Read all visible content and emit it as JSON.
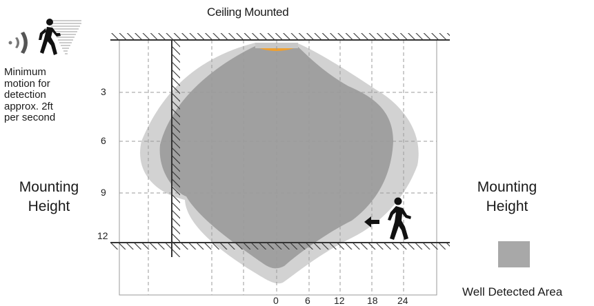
{
  "title": "Ceiling Mounted",
  "motion_note": [
    "Minimum",
    "motion for",
    "detection",
    "approx. 2ft",
    "per second"
  ],
  "mounting_height_left": [
    "Mounting",
    "Height"
  ],
  "mounting_height_right": [
    "Mounting",
    "Height"
  ],
  "y_ticks": [
    "3",
    "6",
    "9",
    "12"
  ],
  "x_ticks": [
    "0",
    "6",
    "12",
    "18",
    "24"
  ],
  "legend": {
    "label": "Well Detected Area",
    "color": "#a8a8a8"
  },
  "colors": {
    "outer_zone": "#d2d2d2",
    "inner_zone": "#a0a0a0",
    "sensor": "#f0a030",
    "grid": "#9a9a9a",
    "hatch": "#333333"
  },
  "icons": [
    "walking-person-icon",
    "motion-wave-icon",
    "arrow-left-icon"
  ]
}
